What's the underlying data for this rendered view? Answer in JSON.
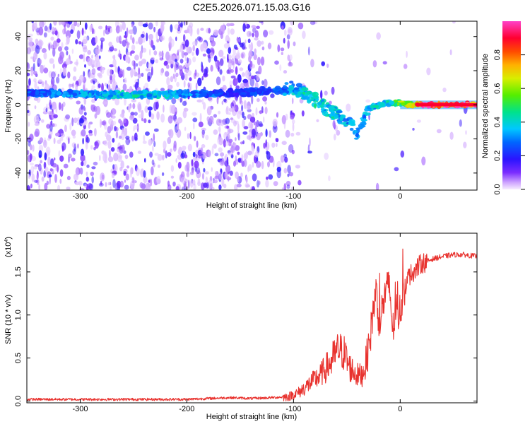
{
  "title": "C2E5.2026.071.15.03.G16",
  "chart_data": [
    {
      "type": "heatmap",
      "xlabel": "Height of straight line (km)",
      "ylabel": "Frequency (Hz)",
      "xlim": [
        -350,
        72
      ],
      "ylim": [
        -50,
        49
      ],
      "xticks": [
        -300,
        -200,
        -100,
        0
      ],
      "xtick_labels": [
        "-300",
        "-200",
        "-100",
        "0"
      ],
      "yticks": [
        -40,
        -20,
        0,
        20,
        40
      ],
      "ytick_labels": [
        "-40",
        "-20",
        "0",
        "20",
        "40"
      ],
      "colorbar": {
        "label": "Normalized spectral amplitude",
        "range": [
          0,
          1
        ],
        "ticks": [
          0.0,
          0.2,
          0.4,
          0.6,
          0.8
        ],
        "tick_labels": [
          "0.0",
          "0.2",
          "0.4",
          "0.6",
          "0.8"
        ]
      },
      "ridge": [
        {
          "x": -350,
          "f": 7,
          "a": 0.25
        },
        {
          "x": -280,
          "f": 6,
          "a": 0.35
        },
        {
          "x": -250,
          "f": 6,
          "a": 0.4
        },
        {
          "x": -225,
          "f": 6,
          "a": 0.38
        },
        {
          "x": -150,
          "f": 7,
          "a": 0.2
        },
        {
          "x": -110,
          "f": 9,
          "a": 0.3
        },
        {
          "x": -100,
          "f": 10,
          "a": 0.35
        },
        {
          "x": -90,
          "f": 7,
          "a": 0.4
        },
        {
          "x": -80,
          "f": 3,
          "a": 0.4
        },
        {
          "x": -70,
          "f": -2,
          "a": 0.4
        },
        {
          "x": -60,
          "f": -6,
          "a": 0.4
        },
        {
          "x": -50,
          "f": -10,
          "a": 0.35
        },
        {
          "x": -40,
          "f": -17,
          "a": 0.3
        },
        {
          "x": -30,
          "f": -2,
          "a": 0.35
        },
        {
          "x": -20,
          "f": 0,
          "a": 0.4
        },
        {
          "x": -10,
          "f": 1,
          "a": 0.45
        },
        {
          "x": 0,
          "f": 1,
          "a": 0.55
        },
        {
          "x": 10,
          "f": 0,
          "a": 0.7
        },
        {
          "x": 20,
          "f": 0,
          "a": 0.95
        },
        {
          "x": 72,
          "f": 0,
          "a": 0.95
        }
      ]
    },
    {
      "type": "line",
      "xlabel": "Height of straight line (km)",
      "ylabel": "SNR (10 * v/v)",
      "y_multiplier": "(x10",
      "y_multiplier_exp": "4",
      "y_multiplier_close": ")",
      "xlim": [
        -350,
        72
      ],
      "ylim": [
        -0.02,
        1.95
      ],
      "xticks": [
        -300,
        -200,
        -100,
        0
      ],
      "xtick_labels": [
        "-300",
        "-200",
        "-100",
        "0"
      ],
      "yticks": [
        0.0,
        0.5,
        1.0,
        1.5
      ],
      "ytick_labels": [
        "0.0",
        "0.5",
        "1.0",
        "1.5"
      ],
      "series": [
        {
          "name": "SNR",
          "color": "#e8322e",
          "x": [
            -350,
            -300,
            -250,
            -200,
            -160,
            -140,
            -120,
            -105,
            -95,
            -85,
            -75,
            -65,
            -58,
            -52,
            -48,
            -44,
            -40,
            -36,
            -32,
            -28,
            -25,
            -22,
            -20,
            -18,
            -14,
            -10,
            -7,
            -4,
            -2,
            0,
            2,
            5,
            8,
            12,
            16,
            20,
            25,
            30,
            40,
            50,
            60,
            72
          ],
          "values": [
            0.02,
            0.02,
            0.02,
            0.02,
            0.04,
            0.03,
            0.04,
            0.05,
            0.1,
            0.2,
            0.3,
            0.45,
            0.6,
            0.55,
            0.4,
            0.35,
            0.3,
            0.3,
            0.45,
            0.75,
            1.1,
            1.3,
            0.9,
            1.0,
            1.25,
            1.35,
            0.8,
            1.1,
            1.0,
            1.05,
            1.2,
            1.35,
            1.45,
            1.5,
            1.55,
            1.6,
            1.62,
            1.65,
            1.68,
            1.7,
            1.7,
            1.68
          ]
        }
      ]
    }
  ]
}
